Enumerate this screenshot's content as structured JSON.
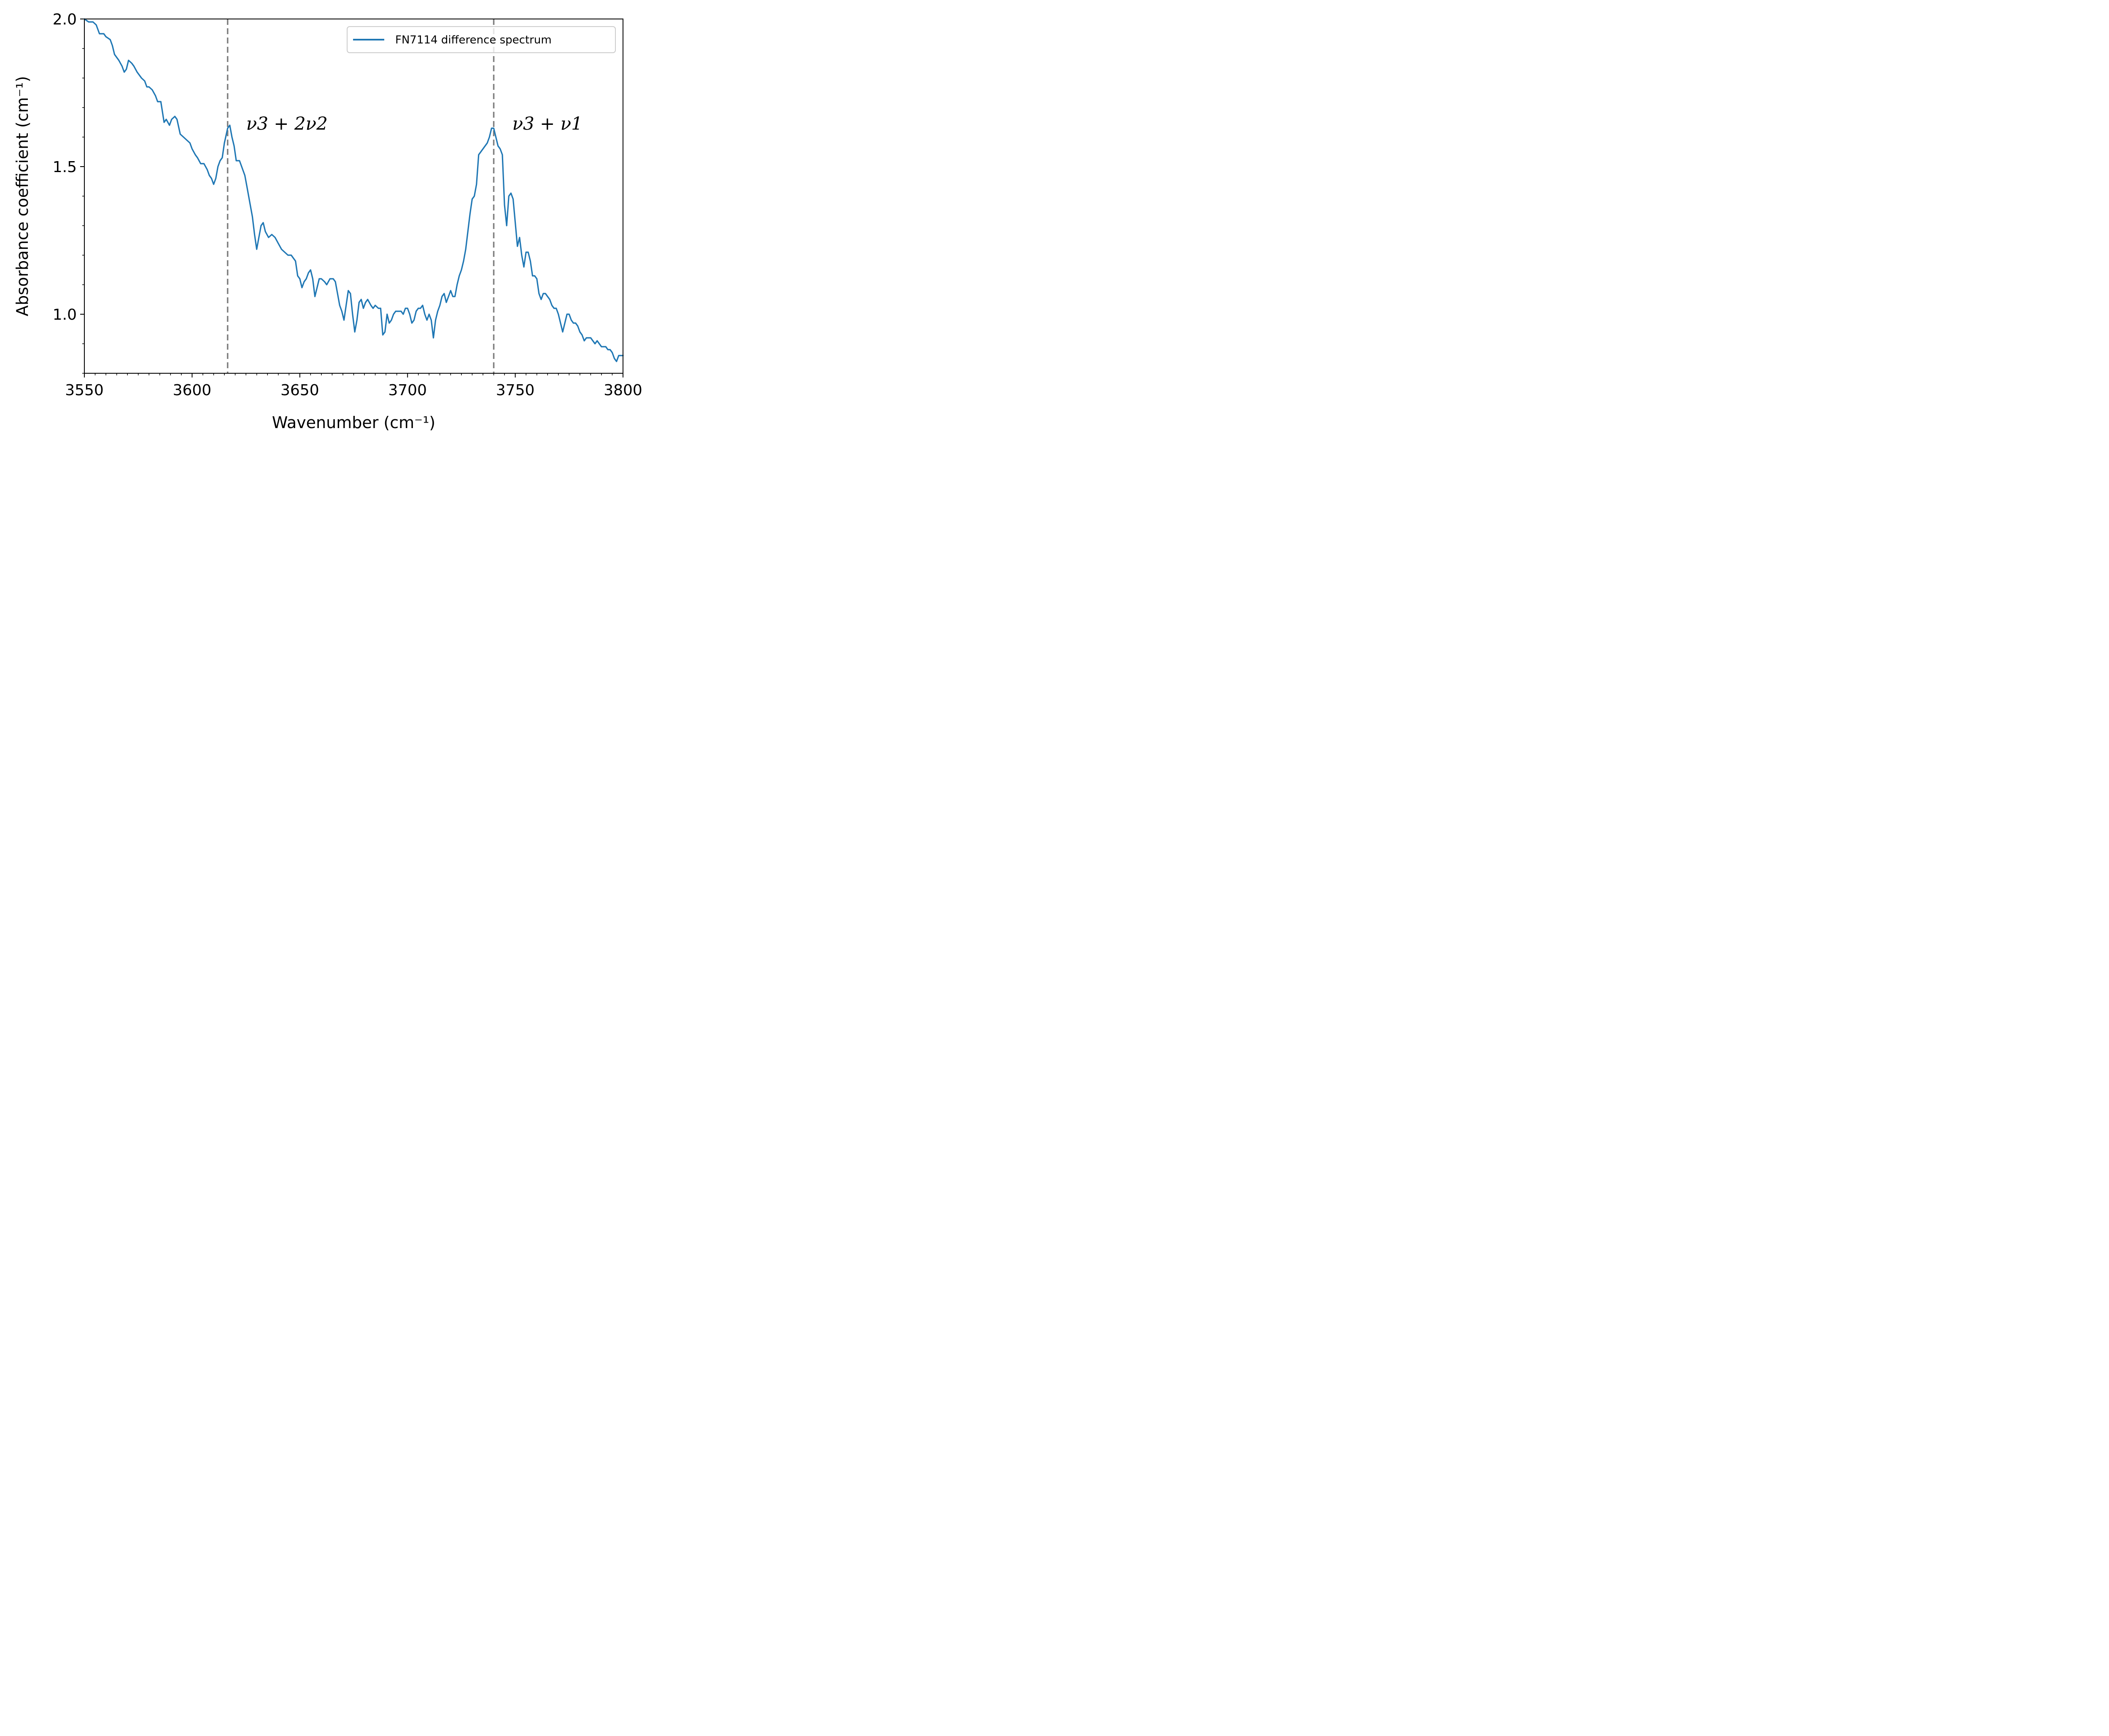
{
  "chart_data": {
    "type": "line",
    "title": "",
    "xlabel": "Wavenumber (cm⁻¹)",
    "ylabel": "Absorbance coefficient (cm⁻¹)",
    "xlim": [
      3550,
      3800
    ],
    "ylim": [
      0.8,
      2.0
    ],
    "x_ticks": [
      3550,
      3600,
      3650,
      3700,
      3750,
      3800
    ],
    "x_tick_labels": [
      "3550",
      "3600",
      "3650",
      "3700",
      "3750",
      "3800"
    ],
    "y_ticks": [
      1.0,
      1.5,
      2.0
    ],
    "y_tick_labels": [
      "1.0",
      "1.5",
      "2.0"
    ],
    "x_minor_step": 5,
    "y_minor_step": 0.1,
    "grid": false,
    "legend": {
      "position": "top-right",
      "entries": [
        "FN7114 difference spectrum"
      ]
    },
    "colors": {
      "series": "#1f77b4",
      "reference_lines": "#808080"
    },
    "reference_lines": [
      {
        "x": 3616.5,
        "label": "ν3 + 2ν2"
      },
      {
        "x": 3740,
        "label": "ν3 + ν1"
      }
    ],
    "series": [
      {
        "name": "FN7114 difference spectrum",
        "points": [
          [
            3550,
            2.0
          ],
          [
            3552,
            1.99
          ],
          [
            3554,
            1.99
          ],
          [
            3555.5,
            1.98
          ],
          [
            3557,
            1.95
          ],
          [
            3559,
            1.95
          ],
          [
            3560,
            1.94
          ],
          [
            3562,
            1.93
          ],
          [
            3563,
            1.91
          ],
          [
            3564,
            1.88
          ],
          [
            3566,
            1.86
          ],
          [
            3567.5,
            1.84
          ],
          [
            3568.5,
            1.82
          ],
          [
            3569.5,
            1.83
          ],
          [
            3570.5,
            1.86
          ],
          [
            3572,
            1.85
          ],
          [
            3573,
            1.84
          ],
          [
            3574.5,
            1.82
          ],
          [
            3575.5,
            1.81
          ],
          [
            3576.5,
            1.8
          ],
          [
            3578,
            1.79
          ],
          [
            3579,
            1.77
          ],
          [
            3580,
            1.77
          ],
          [
            3581.5,
            1.76
          ],
          [
            3583,
            1.74
          ],
          [
            3584,
            1.72
          ],
          [
            3585.5,
            1.72
          ],
          [
            3587,
            1.65
          ],
          [
            3588,
            1.66
          ],
          [
            3589.5,
            1.64
          ],
          [
            3590.5,
            1.66
          ],
          [
            3592,
            1.67
          ],
          [
            3593,
            1.66
          ],
          [
            3594.5,
            1.61
          ],
          [
            3596,
            1.6
          ],
          [
            3597.5,
            1.59
          ],
          [
            3599,
            1.58
          ],
          [
            3600,
            1.56
          ],
          [
            3601.5,
            1.54
          ],
          [
            3602.5,
            1.53
          ],
          [
            3604,
            1.51
          ],
          [
            3605.5,
            1.51
          ],
          [
            3607,
            1.49
          ],
          [
            3608,
            1.47
          ],
          [
            3609,
            1.46
          ],
          [
            3610,
            1.44
          ],
          [
            3611,
            1.46
          ],
          [
            3612,
            1.5
          ],
          [
            3613,
            1.52
          ],
          [
            3614,
            1.53
          ],
          [
            3615,
            1.58
          ],
          [
            3616.5,
            1.63
          ],
          [
            3617.5,
            1.64
          ],
          [
            3618.5,
            1.6
          ],
          [
            3619.5,
            1.57
          ],
          [
            3620.5,
            1.52
          ],
          [
            3622,
            1.52
          ],
          [
            3623,
            1.5
          ],
          [
            3624.5,
            1.47
          ],
          [
            3625.5,
            1.43
          ],
          [
            3627,
            1.37
          ],
          [
            3628,
            1.33
          ],
          [
            3629,
            1.27
          ],
          [
            3630,
            1.22
          ],
          [
            3631,
            1.26
          ],
          [
            3632,
            1.3
          ],
          [
            3633,
            1.31
          ],
          [
            3634,
            1.28
          ],
          [
            3635.5,
            1.26
          ],
          [
            3637,
            1.27
          ],
          [
            3638.5,
            1.26
          ],
          [
            3640,
            1.24
          ],
          [
            3641.5,
            1.22
          ],
          [
            3643,
            1.21
          ],
          [
            3644.5,
            1.2
          ],
          [
            3646,
            1.2
          ],
          [
            3647,
            1.19
          ],
          [
            3648,
            1.18
          ],
          [
            3649,
            1.13
          ],
          [
            3650,
            1.12
          ],
          [
            3651,
            1.09
          ],
          [
            3652,
            1.11
          ],
          [
            3653,
            1.12
          ],
          [
            3654,
            1.14
          ],
          [
            3655,
            1.15
          ],
          [
            3656,
            1.12
          ],
          [
            3657,
            1.06
          ],
          [
            3658,
            1.09
          ],
          [
            3659,
            1.12
          ],
          [
            3660,
            1.12
          ],
          [
            3661.5,
            1.11
          ],
          [
            3662.5,
            1.1
          ],
          [
            3664,
            1.12
          ],
          [
            3665.5,
            1.12
          ],
          [
            3666.5,
            1.11
          ],
          [
            3667.5,
            1.07
          ],
          [
            3668.5,
            1.03
          ],
          [
            3669.5,
            1.01
          ],
          [
            3670.5,
            0.98
          ],
          [
            3671.5,
            1.03
          ],
          [
            3672.5,
            1.08
          ],
          [
            3673.5,
            1.07
          ],
          [
            3674.5,
            1.0
          ],
          [
            3675.5,
            0.94
          ],
          [
            3676.5,
            0.98
          ],
          [
            3677.5,
            1.04
          ],
          [
            3678.5,
            1.05
          ],
          [
            3679.5,
            1.02
          ],
          [
            3680.5,
            1.04
          ],
          [
            3681.5,
            1.05
          ],
          [
            3683,
            1.03
          ],
          [
            3684,
            1.02
          ],
          [
            3685,
            1.03
          ],
          [
            3686.5,
            1.02
          ],
          [
            3687.5,
            1.02
          ],
          [
            3688.5,
            0.93
          ],
          [
            3689.5,
            0.94
          ],
          [
            3690.5,
            1.0
          ],
          [
            3691.5,
            0.97
          ],
          [
            3692.5,
            0.98
          ],
          [
            3693.5,
            1.0
          ],
          [
            3694.5,
            1.01
          ],
          [
            3695.5,
            1.01
          ],
          [
            3697,
            1.01
          ],
          [
            3698,
            1.0
          ],
          [
            3699,
            1.02
          ],
          [
            3700,
            1.02
          ],
          [
            3701,
            1.0
          ],
          [
            3702,
            0.97
          ],
          [
            3703,
            0.98
          ],
          [
            3704,
            1.01
          ],
          [
            3705,
            1.02
          ],
          [
            3706,
            1.02
          ],
          [
            3707,
            1.03
          ],
          [
            3708,
            1.0
          ],
          [
            3709,
            0.98
          ],
          [
            3710,
            1.0
          ],
          [
            3711,
            0.98
          ],
          [
            3712,
            0.92
          ],
          [
            3713,
            0.98
          ],
          [
            3714,
            1.01
          ],
          [
            3715,
            1.03
          ],
          [
            3716,
            1.06
          ],
          [
            3717,
            1.07
          ],
          [
            3718,
            1.04
          ],
          [
            3719,
            1.06
          ],
          [
            3720,
            1.08
          ],
          [
            3721,
            1.06
          ],
          [
            3722,
            1.06
          ],
          [
            3723,
            1.1
          ],
          [
            3724,
            1.13
          ],
          [
            3725,
            1.15
          ],
          [
            3726,
            1.18
          ],
          [
            3727,
            1.22
          ],
          [
            3728,
            1.28
          ],
          [
            3729,
            1.34
          ],
          [
            3730,
            1.39
          ],
          [
            3731,
            1.4
          ],
          [
            3732,
            1.44
          ],
          [
            3733,
            1.54
          ],
          [
            3734,
            1.55
          ],
          [
            3735,
            1.56
          ],
          [
            3736,
            1.57
          ],
          [
            3737,
            1.58
          ],
          [
            3738,
            1.6
          ],
          [
            3739,
            1.63
          ],
          [
            3740,
            1.63
          ],
          [
            3741,
            1.6
          ],
          [
            3742,
            1.57
          ],
          [
            3743,
            1.56
          ],
          [
            3744,
            1.54
          ],
          [
            3745,
            1.37
          ],
          [
            3746,
            1.3
          ],
          [
            3747,
            1.4
          ],
          [
            3748,
            1.41
          ],
          [
            3749,
            1.39
          ],
          [
            3750,
            1.31
          ],
          [
            3751,
            1.23
          ],
          [
            3752,
            1.26
          ],
          [
            3753,
            1.2
          ],
          [
            3754,
            1.16
          ],
          [
            3755,
            1.21
          ],
          [
            3756,
            1.21
          ],
          [
            3757,
            1.18
          ],
          [
            3758,
            1.13
          ],
          [
            3759,
            1.13
          ],
          [
            3760,
            1.12
          ],
          [
            3761,
            1.07
          ],
          [
            3762,
            1.05
          ],
          [
            3763,
            1.07
          ],
          [
            3764,
            1.07
          ],
          [
            3765,
            1.06
          ],
          [
            3766,
            1.05
          ],
          [
            3767,
            1.03
          ],
          [
            3768,
            1.02
          ],
          [
            3769,
            1.02
          ],
          [
            3770,
            1.0
          ],
          [
            3771,
            0.97
          ],
          [
            3772,
            0.94
          ],
          [
            3773,
            0.97
          ],
          [
            3774,
            1.0
          ],
          [
            3775,
            1.0
          ],
          [
            3776,
            0.98
          ],
          [
            3777,
            0.97
          ],
          [
            3778,
            0.97
          ],
          [
            3779,
            0.96
          ],
          [
            3780,
            0.94
          ],
          [
            3781,
            0.93
          ],
          [
            3782,
            0.91
          ],
          [
            3783,
            0.92
          ],
          [
            3784,
            0.92
          ],
          [
            3785,
            0.92
          ],
          [
            3786,
            0.91
          ],
          [
            3787,
            0.9
          ],
          [
            3788,
            0.91
          ],
          [
            3789,
            0.9
          ],
          [
            3790,
            0.89
          ],
          [
            3791,
            0.89
          ],
          [
            3792,
            0.89
          ],
          [
            3793,
            0.88
          ],
          [
            3794,
            0.88
          ],
          [
            3795,
            0.87
          ],
          [
            3796,
            0.85
          ],
          [
            3797,
            0.84
          ],
          [
            3798,
            0.86
          ],
          [
            3799,
            0.86
          ],
          [
            3800,
            0.86
          ]
        ]
      }
    ]
  }
}
